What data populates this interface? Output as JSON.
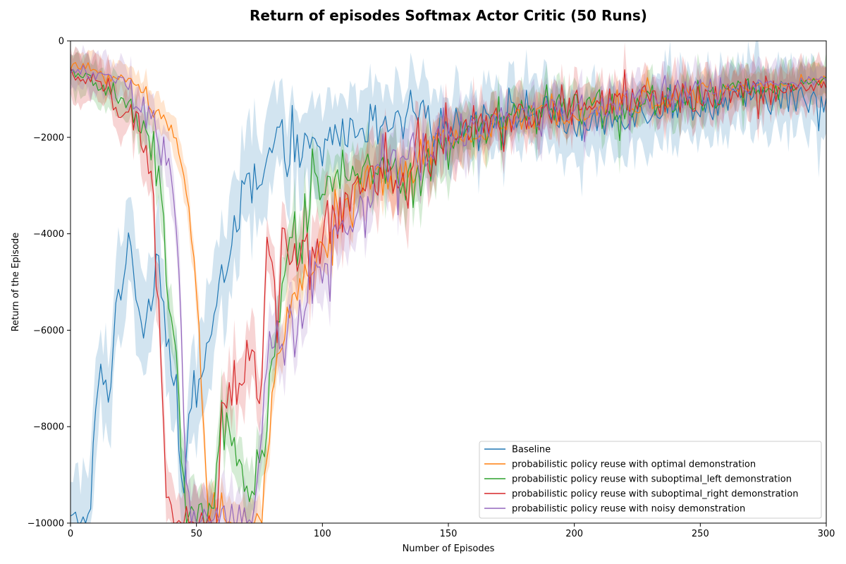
{
  "chart_data": {
    "type": "line",
    "title": "Return of episodes Softmax Actor Critic (50 Runs)",
    "xlabel": "Number of Episodes",
    "ylabel": "Return of the Episode",
    "xlim": [
      0,
      300
    ],
    "ylim": [
      -10000,
      0
    ],
    "xticks": [
      0,
      50,
      100,
      150,
      200,
      250,
      300
    ],
    "yticks": [
      -10000,
      -8000,
      -6000,
      -4000,
      -2000,
      0
    ],
    "xtick_labels": [
      "0",
      "50",
      "100",
      "150",
      "200",
      "250",
      "300"
    ],
    "ytick_labels": [
      "−10000",
      "−8000",
      "−6000",
      "−4000",
      "−2000",
      "0"
    ],
    "grid": false,
    "legend_position": "lower-right",
    "shaded_band": true,
    "series": [
      {
        "name": "Baseline",
        "color": "#1f77b4",
        "band_width": 700,
        "noise_amp": 900,
        "x": [
          0,
          5,
          8,
          10,
          12,
          15,
          18,
          20,
          22,
          25,
          28,
          30,
          33,
          35,
          37,
          40,
          42,
          44,
          46,
          48,
          50,
          52,
          55,
          58,
          60,
          62,
          64,
          66,
          68,
          70,
          72,
          75,
          78,
          80,
          82,
          85,
          88,
          90,
          95,
          100,
          105,
          110,
          115,
          120,
          125,
          130,
          135,
          140,
          150,
          160,
          170,
          180,
          190,
          200,
          210,
          220,
          230,
          240,
          250,
          260,
          270,
          280,
          290,
          300
        ],
        "y": [
          -10000,
          -10000,
          -10000,
          -7200,
          -7000,
          -7400,
          -5500,
          -5000,
          -4200,
          -4700,
          -5600,
          -5800,
          -4800,
          -4300,
          -5500,
          -6700,
          -7800,
          -9300,
          -8600,
          -7600,
          -7000,
          -6800,
          -6200,
          -5600,
          -5000,
          -4500,
          -3800,
          -3600,
          -3300,
          -3000,
          -3100,
          -3200,
          -2600,
          -2200,
          -2100,
          -2000,
          -2100,
          -2300,
          -2200,
          -2300,
          -1800,
          -1900,
          -1700,
          -1900,
          -1800,
          -1700,
          -1600,
          -1500,
          -1700,
          -1600,
          -1500,
          -1500,
          -1400,
          -1800,
          -1700,
          -1500,
          -1400,
          -1300,
          -1300,
          -1300,
          -1100,
          -1200,
          -1200,
          -1150
        ]
      },
      {
        "name": "probabilistic policy reuse with optimal demonstration",
        "color": "#ff7f0e",
        "band_width": 300,
        "noise_amp": 750,
        "x": [
          0,
          5,
          10,
          15,
          20,
          25,
          30,
          33,
          36,
          38,
          40,
          42,
          44,
          46,
          48,
          50,
          52,
          54,
          56,
          60,
          65,
          70,
          75,
          78,
          80,
          82,
          85,
          88,
          90,
          95,
          100,
          105,
          110,
          115,
          120,
          125,
          130,
          135,
          140,
          150,
          160,
          170,
          180,
          190,
          200,
          210,
          220,
          230,
          240,
          250,
          260,
          270,
          280,
          290,
          300
        ],
        "y": [
          -500,
          -550,
          -600,
          -700,
          -800,
          -850,
          -1100,
          -1300,
          -1500,
          -1700,
          -1900,
          -2200,
          -2600,
          -2800,
          -3600,
          -5000,
          -7000,
          -9500,
          -10000,
          -10000,
          -10000,
          -10000,
          -10000,
          -9000,
          -7200,
          -6600,
          -6000,
          -5500,
          -5000,
          -4800,
          -4300,
          -3800,
          -3300,
          -3000,
          -2800,
          -2700,
          -2900,
          -2600,
          -2300,
          -2100,
          -1900,
          -1700,
          -1600,
          -1500,
          -1400,
          -1300,
          -1300,
          -1200,
          -1100,
          -1050,
          -1000,
          -950,
          -900,
          -850,
          -800
        ]
      },
      {
        "name": "probabilistic policy reuse with suboptimal_left demonstration",
        "color": "#2ca02c",
        "band_width": 400,
        "noise_amp": 950,
        "x": [
          0,
          5,
          10,
          15,
          20,
          22,
          25,
          28,
          30,
          33,
          35,
          36,
          37,
          38,
          39,
          40,
          42,
          44,
          46,
          50,
          55,
          58,
          60,
          62,
          65,
          68,
          70,
          72,
          75,
          78,
          80,
          82,
          85,
          88,
          90,
          95,
          100,
          105,
          110,
          115,
          120,
          125,
          130,
          135,
          140,
          150,
          160,
          170,
          180,
          190,
          200,
          210,
          220,
          230,
          240,
          250,
          260,
          270,
          280,
          290,
          300
        ],
        "y": [
          -600,
          -700,
          -900,
          -1000,
          -1100,
          -1300,
          -1500,
          -1800,
          -2100,
          -2300,
          -2800,
          -3200,
          -3800,
          -4600,
          -5200,
          -5600,
          -6500,
          -8500,
          -10000,
          -10000,
          -10000,
          -9000,
          -7800,
          -7300,
          -8200,
          -8800,
          -9200,
          -9100,
          -8800,
          -7800,
          -6500,
          -5600,
          -4900,
          -4300,
          -3800,
          -3200,
          -2800,
          -2600,
          -2500,
          -2500,
          -2600,
          -2700,
          -2800,
          -2900,
          -2700,
          -2200,
          -1900,
          -1700,
          -1500,
          -1400,
          -1400,
          -1300,
          -1300,
          -1200,
          -1150,
          -1100,
          -1050,
          -1000,
          -950,
          -900,
          -850
        ]
      },
      {
        "name": "probabilistic policy reuse with suboptimal_right demonstration",
        "color": "#d62728",
        "band_width": 450,
        "noise_amp": 900,
        "x": [
          0,
          5,
          10,
          15,
          20,
          25,
          28,
          30,
          32,
          33,
          34,
          35,
          36,
          37,
          38,
          40,
          45,
          50,
          55,
          58,
          60,
          62,
          65,
          68,
          70,
          72,
          75,
          77,
          78,
          80,
          82,
          85,
          88,
          90,
          95,
          100,
          105,
          110,
          115,
          120,
          125,
          130,
          135,
          140,
          150,
          160,
          170,
          180,
          190,
          200,
          210,
          220,
          230,
          240,
          250,
          260,
          270,
          280,
          290,
          300
        ],
        "y": [
          -700,
          -800,
          -900,
          -1000,
          -1300,
          -1600,
          -2000,
          -2500,
          -2600,
          -3600,
          -5500,
          -6200,
          -7000,
          -8200,
          -9600,
          -10000,
          -10000,
          -10000,
          -10000,
          -10000,
          -7800,
          -7200,
          -7000,
          -7400,
          -6500,
          -6200,
          -7500,
          -5500,
          -4000,
          -4500,
          -5800,
          -4200,
          -4700,
          -4500,
          -4300,
          -4200,
          -3700,
          -3300,
          -3000,
          -2800,
          -2700,
          -2800,
          -2600,
          -2300,
          -2000,
          -1800,
          -1600,
          -1500,
          -1500,
          -1400,
          -1300,
          -1200,
          -1200,
          -1150,
          -1100,
          -1050,
          -1000,
          -1000,
          -950,
          -900
        ]
      },
      {
        "name": "probabilistic policy reuse with noisy demonstration",
        "color": "#9467bd",
        "band_width": 400,
        "noise_amp": 900,
        "x": [
          0,
          5,
          10,
          15,
          20,
          25,
          30,
          33,
          36,
          38,
          40,
          41,
          42,
          43,
          44,
          45,
          46,
          48,
          50,
          55,
          60,
          65,
          68,
          70,
          72,
          75,
          78,
          80,
          82,
          85,
          88,
          90,
          92,
          95,
          100,
          105,
          110,
          115,
          120,
          125,
          130,
          135,
          140,
          150,
          160,
          170,
          180,
          190,
          200,
          210,
          220,
          230,
          240,
          250,
          260,
          270,
          280,
          290,
          300
        ],
        "y": [
          -600,
          -650,
          -700,
          -750,
          -800,
          -1100,
          -1500,
          -1700,
          -2100,
          -2300,
          -2800,
          -3100,
          -3600,
          -4800,
          -6200,
          -7800,
          -9000,
          -10000,
          -10000,
          -10000,
          -10000,
          -10000,
          -10000,
          -9500,
          -10000,
          -8500,
          -7000,
          -6300,
          -6200,
          -6000,
          -5800,
          -5900,
          -6100,
          -5200,
          -4600,
          -4200,
          -3700,
          -3300,
          -3000,
          -2700,
          -2600,
          -2400,
          -2200,
          -2000,
          -1800,
          -1600,
          -1500,
          -1400,
          -1400,
          -1300,
          -1250,
          -1200,
          -1100,
          -1050,
          -1000,
          -950,
          -900,
          -850,
          -800
        ]
      }
    ]
  }
}
